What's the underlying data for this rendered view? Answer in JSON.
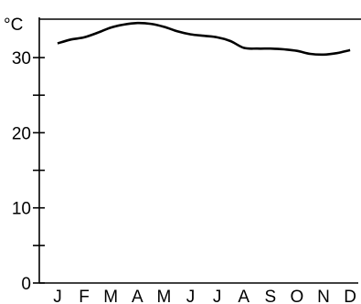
{
  "chart_data": {
    "type": "line",
    "title": "",
    "xlabel": "",
    "ylabel": "°C",
    "x": [
      "J",
      "F",
      "M",
      "A",
      "M",
      "J",
      "J",
      "A",
      "S",
      "O",
      "N",
      "D"
    ],
    "yticks": [
      {
        "value": 0,
        "label": "0"
      },
      {
        "value": 5,
        "label": ""
      },
      {
        "value": 10,
        "label": "10"
      },
      {
        "value": 15,
        "label": ""
      },
      {
        "value": 20,
        "label": "20"
      },
      {
        "value": 25,
        "label": ""
      },
      {
        "value": 30,
        "label": "30"
      }
    ],
    "ylim": [
      0,
      35
    ],
    "grid": false,
    "series": [
      {
        "name": "",
        "color": "#000000",
        "x": [
          0.0,
          0.5,
          1.0,
          1.5,
          2.0,
          2.5,
          3.0,
          3.5,
          4.0,
          4.5,
          5.0,
          5.5,
          6.0,
          6.5,
          7.0,
          7.5,
          8.0,
          8.5,
          9.0,
          9.5,
          10.0,
          10.5,
          11.0
        ],
        "values": [
          31.9,
          32.4,
          32.7,
          33.3,
          34.0,
          34.4,
          34.6,
          34.5,
          34.1,
          33.5,
          33.1,
          32.9,
          32.7,
          32.2,
          31.3,
          31.2,
          31.2,
          31.1,
          30.9,
          30.5,
          30.4,
          30.6,
          31.0
        ]
      }
    ]
  }
}
